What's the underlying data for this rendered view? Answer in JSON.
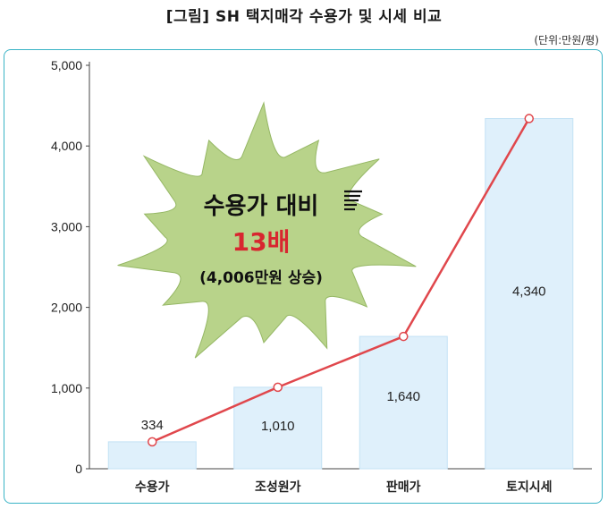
{
  "title": "[그림] SH 택지매각 수용가 및 시세 비교",
  "unit": "(단위:만원/평)",
  "callout": {
    "line1": "수용가 대비",
    "line2": "13배",
    "line3": "(4,006만원 상승)"
  },
  "colors": {
    "bar_fill": "#dff0fb",
    "bar_stroke": "#c3e2f5",
    "line": "#e0474c",
    "burst": "#b8d38a",
    "burst_stroke": "#95b764",
    "highlight": "#d8262f",
    "frame": "#39b3c6"
  },
  "chart_data": {
    "type": "bar",
    "categories": [
      "수용가",
      "조성원가",
      "판매가",
      "토지시세"
    ],
    "values": [
      334,
      1010,
      1640,
      4340
    ],
    "value_labels": [
      "334",
      "1,010",
      "1,640",
      "4,340"
    ],
    "overlay_line": true,
    "ylim": [
      0,
      5000
    ],
    "yticks": [
      0,
      1000,
      2000,
      3000,
      4000,
      5000
    ],
    "ytick_labels": [
      "0",
      "1,000",
      "2,000",
      "3,000",
      "4,000",
      "5,000"
    ],
    "grid": false,
    "xlabel": "",
    "ylabel": ""
  }
}
